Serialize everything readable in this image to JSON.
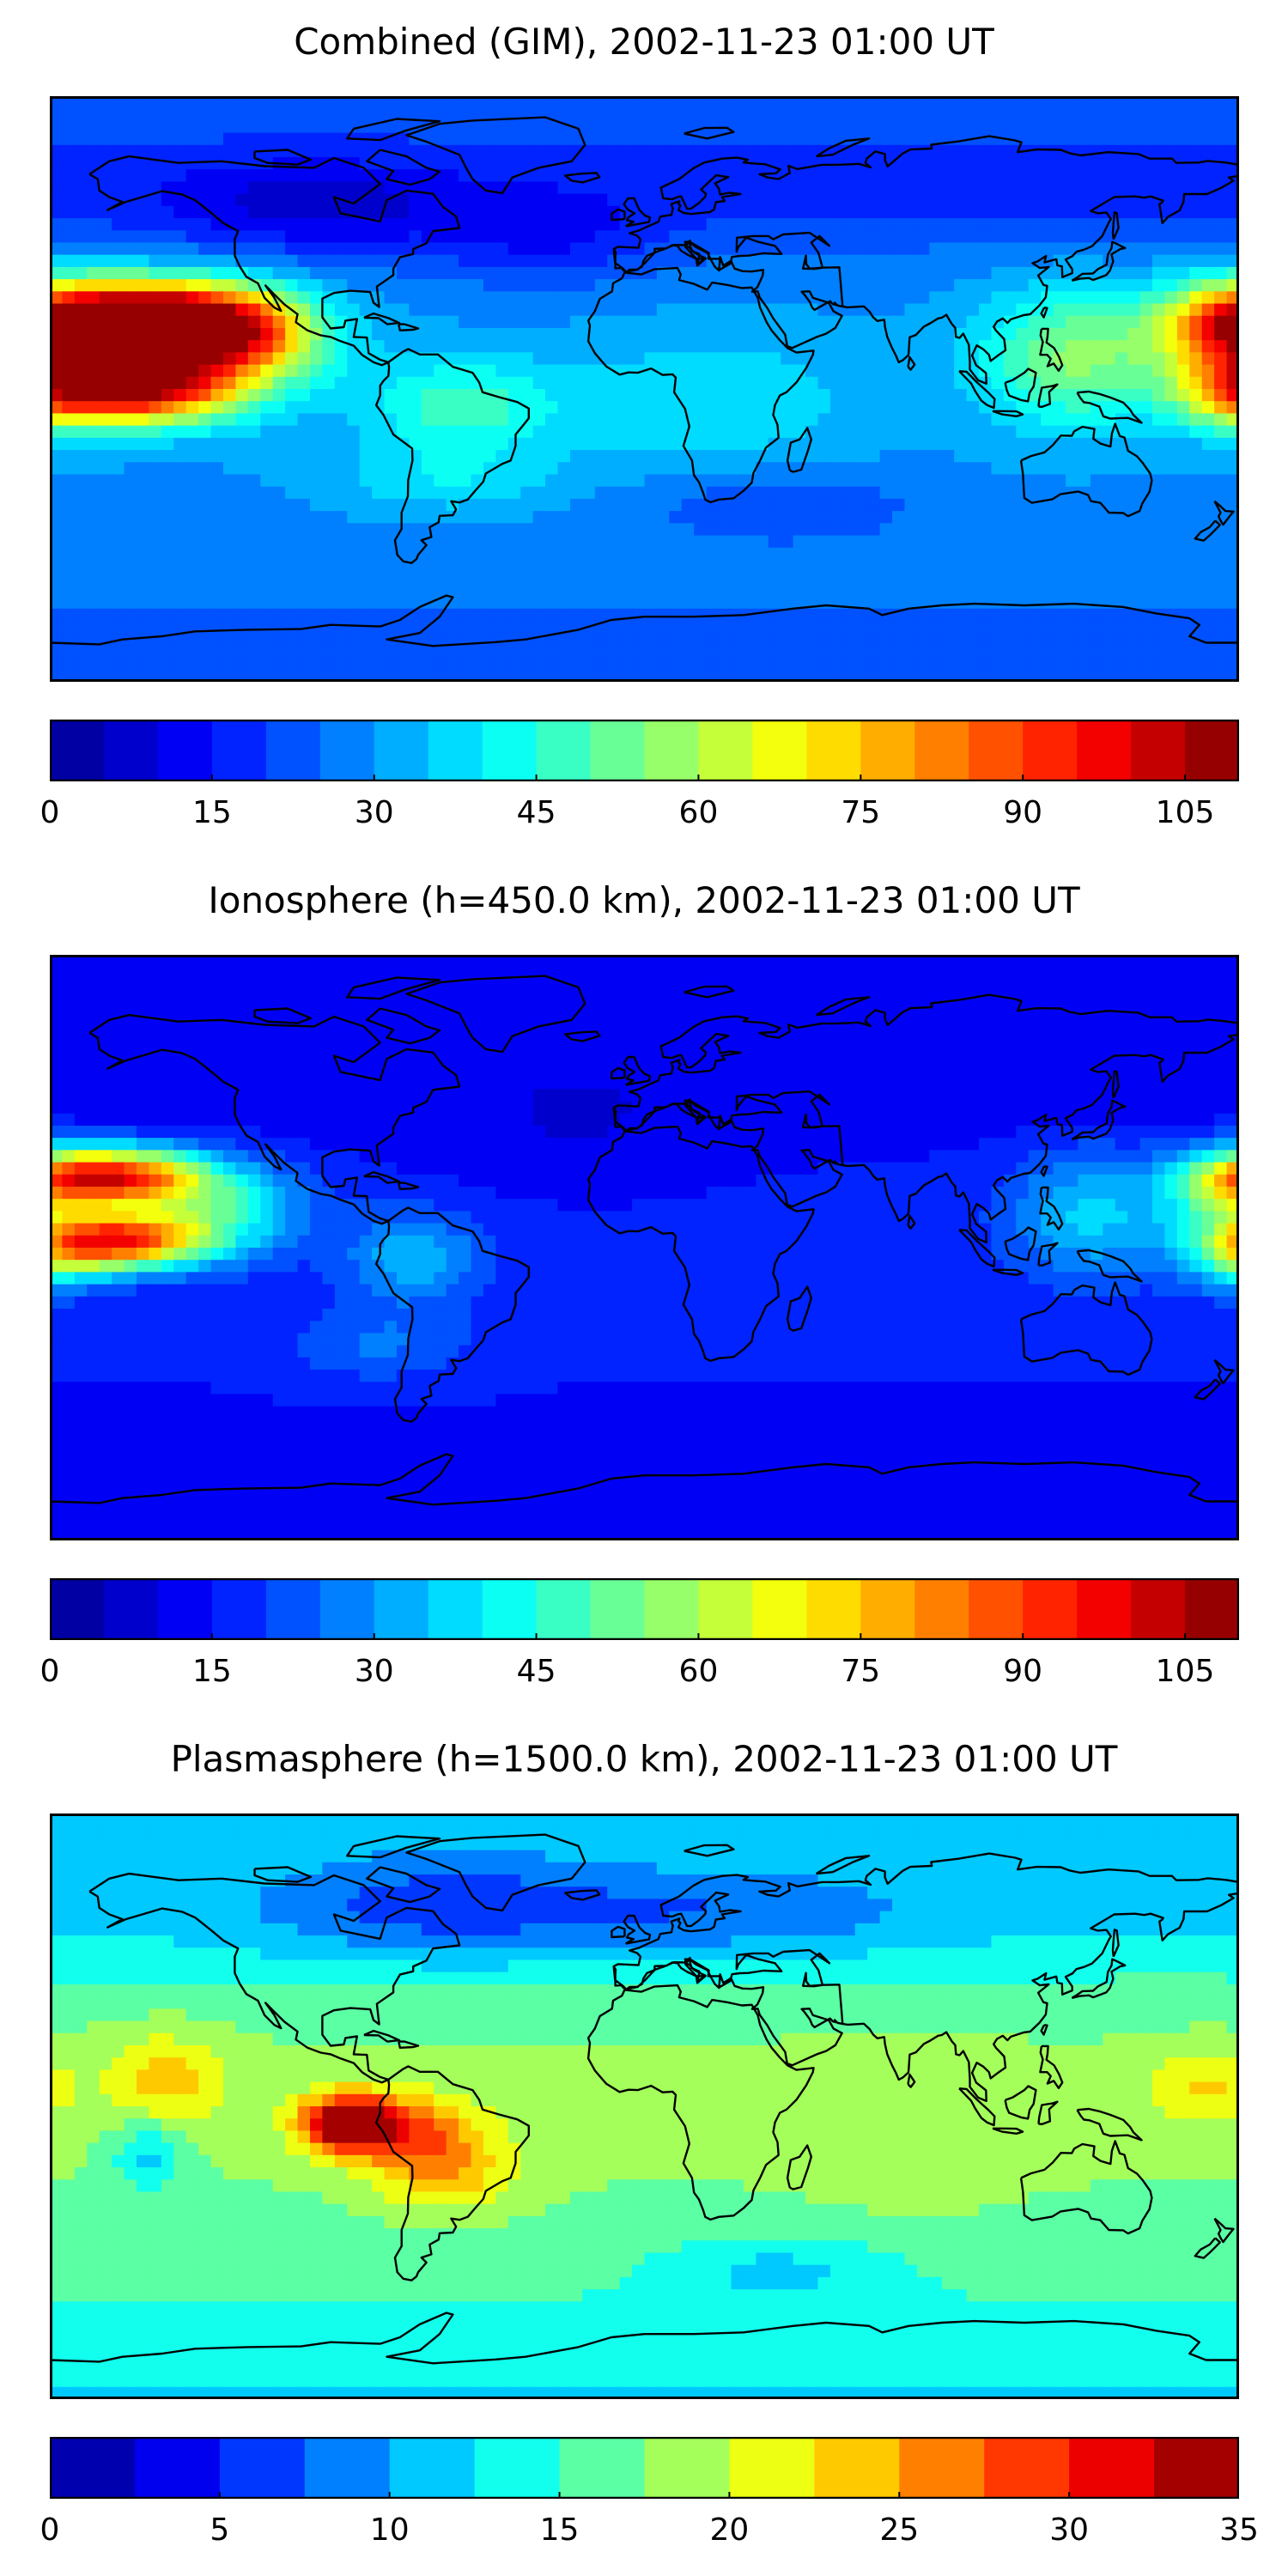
{
  "panels": [
    {
      "title": "Combined (GIM), 2002-11-23 01:00 UT",
      "cbar_min": 0,
      "cbar_max": 110,
      "cbar_levels": 22,
      "cbar_ticks": [
        "0",
        "15",
        "30",
        "45",
        "60",
        "75",
        "90",
        "105"
      ],
      "cbar_tick_values": [
        0,
        15,
        30,
        45,
        60,
        75,
        90,
        105
      ]
    },
    {
      "title": "Ionosphere  (h=450.0 km), 2002-11-23 01:00 UT",
      "cbar_min": 0,
      "cbar_max": 110,
      "cbar_levels": 22,
      "cbar_ticks": [
        "0",
        "15",
        "30",
        "45",
        "60",
        "75",
        "90",
        "105"
      ],
      "cbar_tick_values": [
        0,
        15,
        30,
        45,
        60,
        75,
        90,
        105
      ]
    },
    {
      "title": "Plasmasphere (h=1500.0 km), 2002-11-23 01:00 UT",
      "cbar_min": 0,
      "cbar_max": 35,
      "cbar_levels": 14,
      "cbar_ticks": [
        "0",
        "5",
        "10",
        "15",
        "20",
        "25",
        "30",
        "35"
      ],
      "cbar_tick_values": [
        0,
        5,
        10,
        15,
        20,
        25,
        30,
        35
      ]
    }
  ],
  "colormap": "jet",
  "jet_colors": [
    "#00008f",
    "#0000ff",
    "#0080ff",
    "#00ffff",
    "#80ff80",
    "#ffff00",
    "#ff8000",
    "#ff0000",
    "#800000"
  ]
}
